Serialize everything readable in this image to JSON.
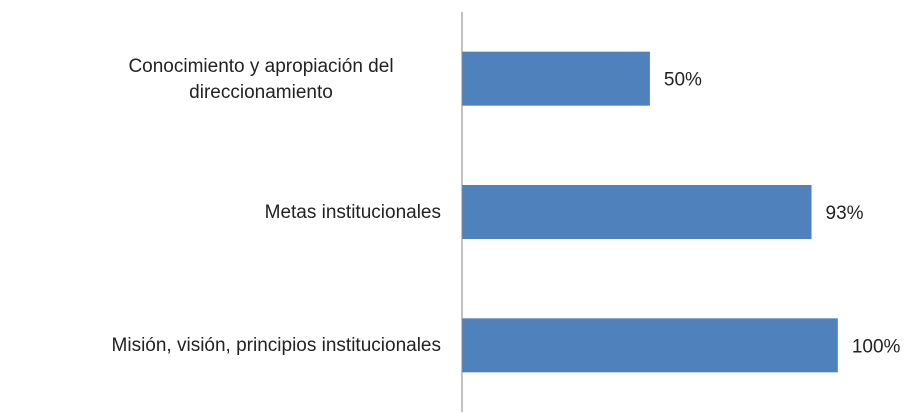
{
  "chart_data": {
    "type": "barh",
    "categories": [
      "Conocimiento y apropiación del direccionamiento",
      "Metas institucionales",
      "Misión, visión, principios institucionales"
    ],
    "values": [
      50,
      93,
      100
    ],
    "value_labels": [
      "50%",
      "93%",
      "100%"
    ],
    "color": "#4f81bd",
    "xlim": [
      0,
      120
    ]
  }
}
